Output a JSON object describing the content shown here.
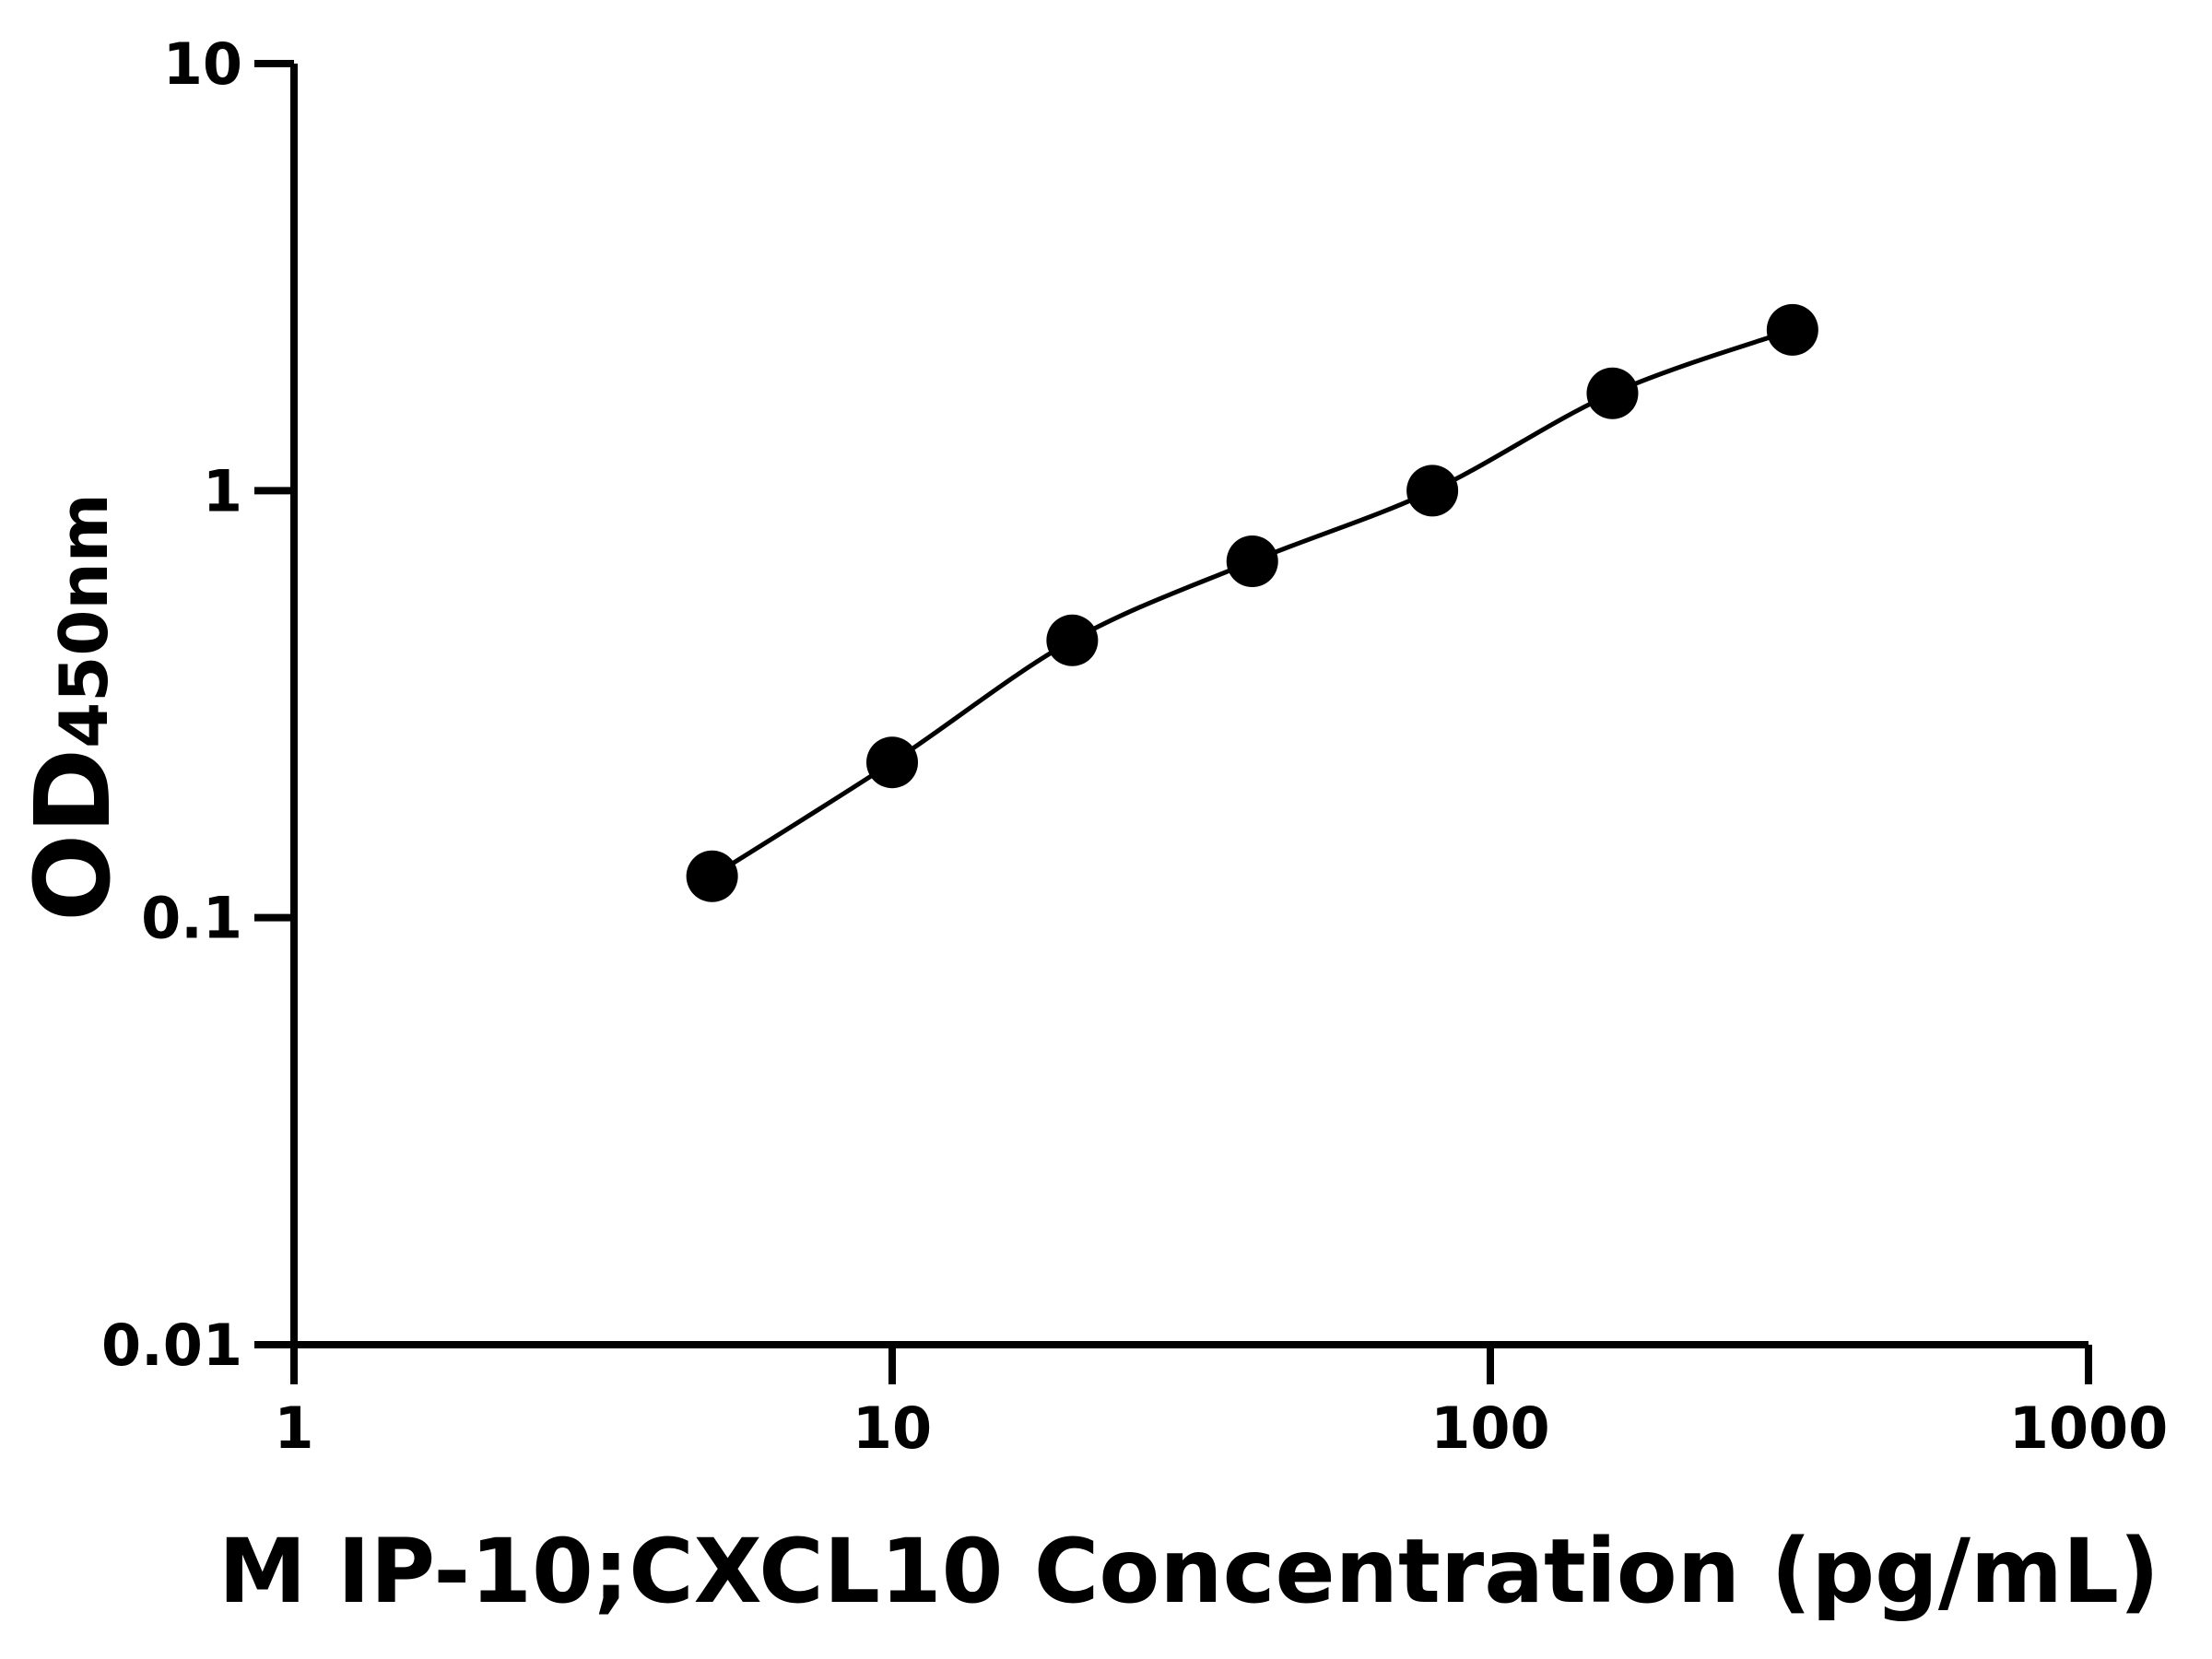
{
  "chart_data": {
    "type": "scatter",
    "title": "",
    "xlabel": "M IP-10;CXCL10 Concentration (pg/mL)",
    "ylabel": {
      "main": "OD",
      "subscript": "450nm"
    },
    "xscale": "log",
    "yscale": "log",
    "xlim": [
      1,
      1000
    ],
    "ylim": [
      0.01,
      10
    ],
    "xticks": [
      "1",
      "10",
      "100",
      "1000"
    ],
    "yticks": [
      "0.01",
      "0.1",
      "1",
      "10"
    ],
    "grid": false,
    "fit_line": true,
    "color": "#000000",
    "series": [
      {
        "x": [
          5,
          10,
          20,
          40,
          80,
          160,
          320
        ],
        "y": [
          0.125,
          0.231,
          0.446,
          0.683,
          1.0,
          1.69,
          2.38
        ]
      }
    ]
  }
}
